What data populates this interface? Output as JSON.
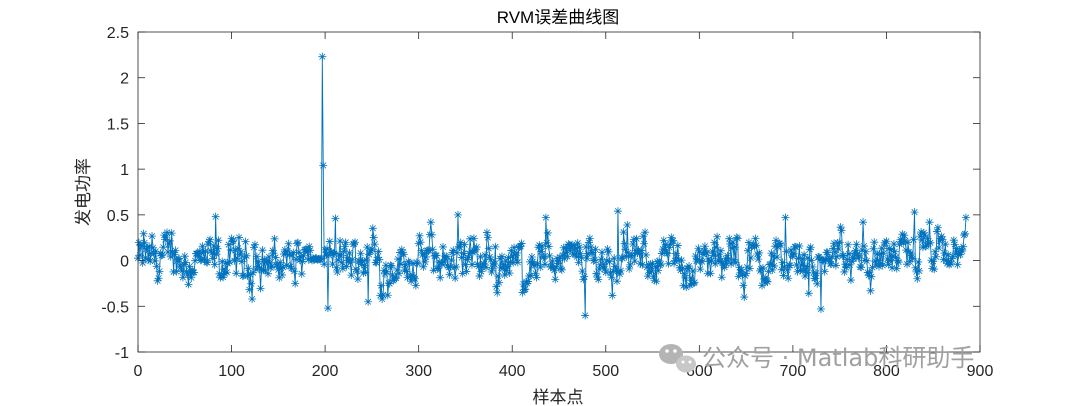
{
  "chart_data": {
    "type": "line",
    "title": "RVM误差曲线图",
    "xlabel": "样本点",
    "ylabel": "发电功率",
    "xlim": [
      0,
      900
    ],
    "ylim": [
      -1,
      2.5
    ],
    "xticks": [
      0,
      100,
      200,
      300,
      400,
      500,
      600,
      700,
      800,
      900
    ],
    "yticks": [
      -1,
      -0.5,
      0,
      0.5,
      1,
      1.5,
      2,
      2.5
    ],
    "xtick_labels": [
      "0",
      "100",
      "200",
      "300",
      "400",
      "500",
      "600",
      "700",
      "800",
      "900"
    ],
    "ytick_labels": [
      "-1",
      "-0.5",
      "0",
      "0.5",
      "1",
      "1.5",
      "2",
      "2.5"
    ],
    "marker": "asterisk",
    "grid": false,
    "series": [
      {
        "name": "RVM误差",
        "color": "#0072BD",
        "n_points": 886,
        "notable_points": [
          {
            "x": 36,
            "y": 0.3
          },
          {
            "x": 83,
            "y": 0.48
          },
          {
            "x": 197,
            "y": 2.23
          },
          {
            "x": 198,
            "y": 1.04
          },
          {
            "x": 203,
            "y": -0.52
          },
          {
            "x": 211,
            "y": 0.46
          },
          {
            "x": 246,
            "y": -0.45
          },
          {
            "x": 342,
            "y": 0.5
          },
          {
            "x": 411,
            "y": -0.35
          },
          {
            "x": 436,
            "y": 0.47
          },
          {
            "x": 478,
            "y": -0.6
          },
          {
            "x": 513,
            "y": 0.54
          },
          {
            "x": 692,
            "y": 0.47
          },
          {
            "x": 730,
            "y": -0.53
          },
          {
            "x": 830,
            "y": 0.53
          },
          {
            "x": 885,
            "y": 0.47
          }
        ]
      }
    ]
  },
  "watermark": {
    "text": "公众号 · Matlab科研助手",
    "icon": "wechat-icon"
  }
}
